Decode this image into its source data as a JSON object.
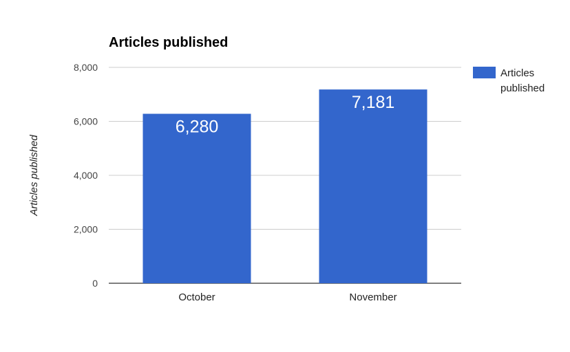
{
  "chart_data": {
    "type": "bar",
    "title": "Articles published",
    "xlabel": "",
    "ylabel": "Articles published",
    "categories": [
      "October",
      "November"
    ],
    "series": [
      {
        "name": "Articles published",
        "values": [
          6280,
          7181
        ],
        "color": "#3366cc"
      }
    ],
    "data_labels": [
      "6,280",
      "7,181"
    ],
    "ylim": [
      0,
      8000
    ],
    "yticks": [
      0,
      2000,
      4000,
      6000,
      8000
    ],
    "ytick_labels": [
      "0",
      "2,000",
      "4,000",
      "6,000",
      "8,000"
    ],
    "grid": true,
    "legend": {
      "position": "right",
      "label_lines": [
        "Articles",
        "published"
      ]
    }
  }
}
